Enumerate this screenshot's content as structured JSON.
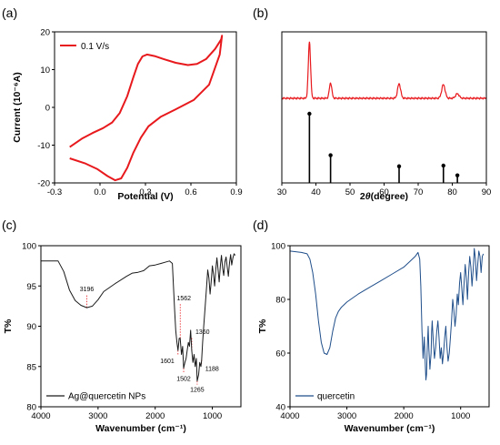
{
  "chart_data": [
    {
      "panel": "(a)",
      "type": "line",
      "xlabel": "Potential (V)",
      "ylabel": "Current (10⁻⁶A)",
      "xlim": [
        -0.3,
        0.9
      ],
      "ylim": [
        -20,
        20
      ],
      "xticks": [
        -0.3,
        0.0,
        0.3,
        0.6,
        0.9
      ],
      "xtick_labels": [
        "-0.3",
        "0.0",
        "0.3",
        "0.6",
        "0.9"
      ],
      "yticks": [
        -20,
        -10,
        0,
        10,
        20
      ],
      "ytick_labels": [
        "-20",
        "-10",
        "0",
        "10",
        "20"
      ],
      "legend": "top-left",
      "series": [
        {
          "name": "0.1 V/s",
          "color": "#e8191d",
          "x": [
            -0.2,
            -0.12,
            -0.05,
            0.02,
            0.08,
            0.13,
            0.18,
            0.22,
            0.25,
            0.28,
            0.31,
            0.36,
            0.42,
            0.5,
            0.58,
            0.64,
            0.7,
            0.76,
            0.8,
            0.805,
            0.79,
            0.72,
            0.62,
            0.5,
            0.4,
            0.32,
            0.27,
            0.22,
            0.18,
            0.14,
            0.1,
            0.05,
            -0.02,
            -0.1,
            -0.2
          ],
          "y": [
            -10.5,
            -8.3,
            -6.8,
            -5.5,
            -4,
            -1.5,
            3,
            8,
            11.5,
            13.5,
            14,
            13.6,
            12.8,
            11.8,
            11.2,
            11.5,
            12.8,
            15.5,
            18,
            19,
            14,
            6,
            2,
            -0.5,
            -2.5,
            -5,
            -8,
            -12,
            -16,
            -18.8,
            -19.3,
            -18.2,
            -16.3,
            -14.8,
            -13.5
          ]
        }
      ]
    },
    {
      "panel": "(b)",
      "type": "line",
      "xlabel": "2θ (degree)",
      "ylabel": "",
      "xlim": [
        30,
        90
      ],
      "xticks": [
        30,
        40,
        50,
        60,
        70,
        80,
        90
      ],
      "xtick_labels": [
        "30",
        "40",
        "50",
        "60",
        "70",
        "80",
        "90"
      ],
      "series": [
        {
          "name": "",
          "color": "#e8191d",
          "peaks": [
            {
              "x": 38.1,
              "height": 0.62
            },
            {
              "x": 44.3,
              "height": 0.17
            },
            {
              "x": 64.4,
              "height": 0.16
            },
            {
              "x": 77.4,
              "height": 0.15
            },
            {
              "x": 81.5,
              "height": 0.05
            }
          ]
        }
      ],
      "reference": {
        "color": "#000000",
        "x": [
          38.1,
          44.3,
          64.4,
          77.4,
          81.5
        ],
        "relative_intensity": [
          1.0,
          0.4,
          0.24,
          0.25,
          0.11
        ]
      }
    },
    {
      "panel": "(c)",
      "type": "line",
      "xlabel": "Wavenumber (cm⁻¹)",
      "ylabel": "T%",
      "xlim": [
        4000,
        500
      ],
      "ylim": [
        80,
        100
      ],
      "xticks": [
        4000,
        3000,
        2000,
        1000
      ],
      "xtick_labels": [
        "4000",
        "3000",
        "2000",
        "1000"
      ],
      "yticks": [
        80,
        85,
        90,
        95,
        100
      ],
      "ytick_labels": [
        "80",
        "85",
        "90",
        "95",
        "100"
      ],
      "legend": "bottom-left",
      "series": [
        {
          "name": "Ag@quercetin NPs",
          "color": "#1a1a1a",
          "x": [
            4000,
            3700,
            3600,
            3500,
            3400,
            3300,
            3196,
            3100,
            3000,
            2900,
            2700,
            2500,
            2400,
            2300,
            2200,
            2100,
            2000,
            1900,
            1800,
            1750,
            1700,
            1680,
            1660,
            1640,
            1620,
            1601,
            1580,
            1562,
            1540,
            1520,
            1502,
            1480,
            1460,
            1440,
            1420,
            1400,
            1380,
            1360,
            1340,
            1320,
            1300,
            1280,
            1265,
            1240,
            1220,
            1200,
            1188,
            1170,
            1150,
            1130,
            1100,
            1080,
            1060,
            1040,
            1020,
            1000,
            980,
            960,
            940,
            920,
            900,
            880,
            860,
            840,
            820,
            800,
            780,
            760,
            740,
            720,
            700,
            680,
            660,
            640,
            620,
            600
          ],
          "y": [
            98.1,
            98.1,
            96.8,
            94.5,
            93.2,
            92.6,
            92.3,
            92.5,
            93.3,
            94.3,
            95.3,
            96.2,
            96.6,
            96.7,
            96.9,
            97.5,
            97.6,
            97.8,
            98,
            98.1,
            97.8,
            95,
            92,
            89.5,
            88,
            87,
            88.5,
            88.5,
            86.5,
            87.5,
            84.8,
            85.5,
            86,
            87,
            88,
            87.5,
            89.5,
            87,
            85.5,
            86.5,
            85,
            86,
            83.2,
            84,
            85.5,
            85,
            85.8,
            88,
            90,
            92,
            95,
            97,
            96,
            94,
            95.5,
            97.5,
            96.5,
            95,
            97,
            98.5,
            97,
            95.5,
            97.5,
            98.8,
            97.2,
            96.3,
            98,
            98.6,
            97.4,
            96.2,
            97.8,
            98.9,
            97.6,
            98.5,
            99,
            98.8
          ]
        }
      ],
      "annotations": [
        {
          "x": 3196,
          "text": "3196"
        },
        {
          "x": 1601,
          "text": "1601"
        },
        {
          "x": 1562,
          "text": "1562"
        },
        {
          "x": 1502,
          "text": "1502"
        },
        {
          "x": 1360,
          "text": "1360"
        },
        {
          "x": 1265,
          "text": "1265"
        },
        {
          "x": 1188,
          "text": "1188"
        }
      ]
    },
    {
      "panel": "(d)",
      "type": "line",
      "xlabel": "Wavenumber (cm⁻¹)",
      "ylabel": "T%",
      "xlim": [
        4000,
        500
      ],
      "ylim": [
        40,
        100
      ],
      "xticks": [
        4000,
        3000,
        2000,
        1000
      ],
      "xtick_labels": [
        "4000",
        "3000",
        "2000",
        "1000"
      ],
      "yticks": [
        40,
        60,
        80,
        100
      ],
      "ytick_labels": [
        "40",
        "60",
        "80",
        "100"
      ],
      "legend": "bottom-left",
      "series": [
        {
          "name": "quercetin",
          "color": "#1f4e8a",
          "x": [
            4000,
            3800,
            3700,
            3650,
            3600,
            3550,
            3500,
            3450,
            3400,
            3350,
            3300,
            3250,
            3200,
            3150,
            3100,
            3000,
            2900,
            2800,
            2600,
            2400,
            2200,
            2000,
            1900,
            1800,
            1750,
            1720,
            1700,
            1680,
            1660,
            1640,
            1620,
            1610,
            1600,
            1590,
            1570,
            1560,
            1540,
            1520,
            1510,
            1500,
            1480,
            1460,
            1440,
            1420,
            1400,
            1380,
            1360,
            1340,
            1320,
            1300,
            1280,
            1260,
            1240,
            1220,
            1200,
            1180,
            1160,
            1140,
            1120,
            1100,
            1080,
            1060,
            1040,
            1020,
            1000,
            980,
            960,
            940,
            920,
            900,
            880,
            860,
            840,
            820,
            800,
            780,
            760,
            740,
            720,
            700,
            680,
            660,
            640,
            620,
            600
          ],
          "y": [
            98,
            97.5,
            97,
            95,
            90,
            82,
            72,
            64,
            60,
            59.5,
            62,
            68,
            73,
            75.5,
            77,
            79,
            80.5,
            82,
            84.5,
            87,
            89.5,
            92,
            94,
            96,
            97.5,
            95,
            85,
            68,
            58,
            66,
            55,
            50,
            52,
            60,
            70,
            62,
            54,
            60,
            68,
            72,
            64,
            58,
            62,
            68,
            72,
            66,
            58,
            62,
            56,
            60,
            66,
            70,
            62,
            57,
            60,
            66,
            72,
            80,
            76,
            70,
            74,
            82,
            78,
            86,
            90,
            84,
            78,
            86,
            93,
            88,
            80,
            90,
            96,
            92,
            85,
            91,
            99,
            95,
            87,
            93,
            98,
            96,
            90,
            96,
            97
          ]
        }
      ]
    }
  ]
}
